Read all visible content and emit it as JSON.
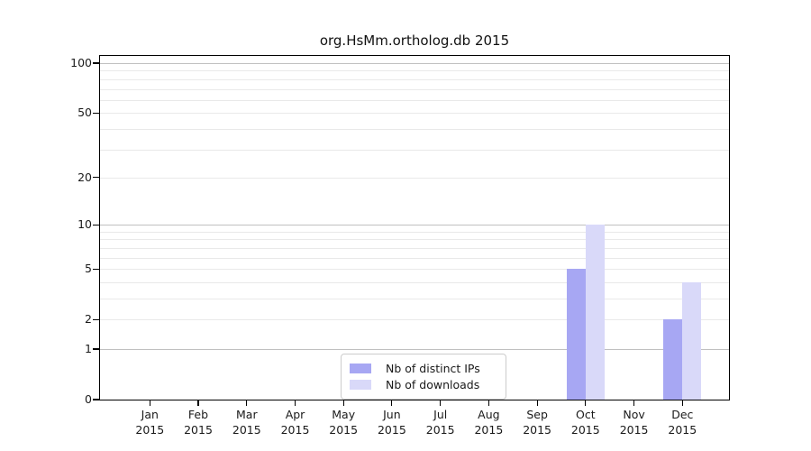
{
  "chart_data": {
    "type": "bar",
    "title": "org.HsMm.ortholog.db 2015",
    "year_label": "2015",
    "categories": [
      "Jan",
      "Feb",
      "Mar",
      "Apr",
      "May",
      "Jun",
      "Jul",
      "Aug",
      "Sep",
      "Oct",
      "Nov",
      "Dec"
    ],
    "series": [
      {
        "name": "Nb of distinct IPs",
        "color": "#a7a7f3",
        "values": [
          0,
          0,
          0,
          0,
          0,
          0,
          0,
          0,
          0,
          5,
          0,
          2
        ]
      },
      {
        "name": "Nb of downloads",
        "color": "#d9d9f9",
        "values": [
          0,
          0,
          0,
          0,
          0,
          0,
          0,
          0,
          0,
          10,
          0,
          4
        ]
      }
    ],
    "xlabel": "",
    "ylabel": "",
    "yscale": "log1p",
    "ylim": [
      0,
      110
    ],
    "yticks": [
      0,
      1,
      2,
      5,
      10,
      20,
      50,
      100
    ],
    "major_gridlines": [
      1,
      10,
      100
    ],
    "minor_gridlines": [
      2,
      3,
      4,
      5,
      6,
      7,
      8,
      9,
      20,
      30,
      40,
      50,
      60,
      70,
      80,
      90
    ],
    "grid": true,
    "legend_position": "bottom-center",
    "colors": {
      "major_grid": "#c0c0c0",
      "minor_grid": "#e9e9e9",
      "axis": "#000000",
      "text": "#1a1a1a",
      "legend_border": "#cccccc"
    }
  }
}
